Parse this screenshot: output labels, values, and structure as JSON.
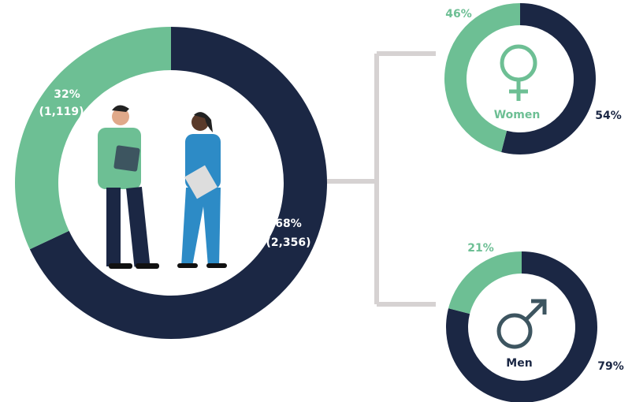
{
  "chart_data": [
    {
      "type": "donut",
      "values": [
        68,
        32
      ],
      "value_labels": [
        "68%",
        "32%"
      ],
      "counts": [
        2356,
        1119
      ],
      "count_labels": [
        "(2,356)",
        "(1,119)"
      ],
      "colors": [
        "#1b2744",
        "#6dbf94"
      ]
    },
    {
      "type": "donut",
      "title": "Women",
      "values": [
        54,
        46
      ],
      "value_labels": [
        "54%",
        "46%"
      ],
      "colors": [
        "#1b2744",
        "#6dbf94"
      ]
    },
    {
      "type": "donut",
      "title": "Men",
      "values": [
        79,
        21
      ],
      "value_labels": [
        "79%",
        "21%"
      ],
      "colors": [
        "#1b2744",
        "#6dbf94"
      ]
    }
  ]
}
